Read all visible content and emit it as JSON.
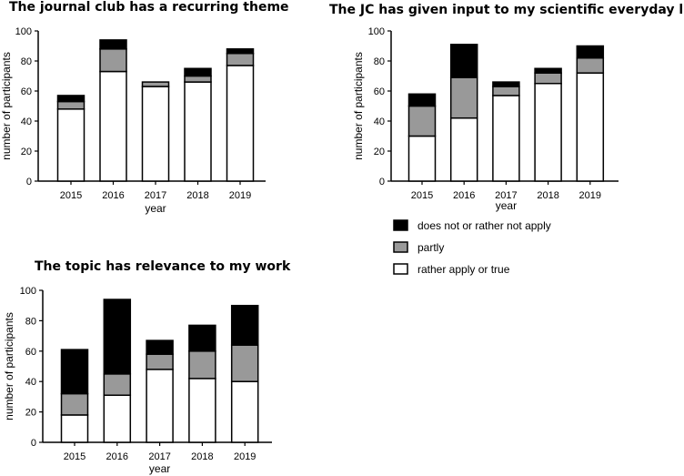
{
  "colors": {
    "does_not_apply": "#000000",
    "partly": "#999999",
    "rather_apply": "#ffffff",
    "outline": "#000000"
  },
  "legend": {
    "items": [
      {
        "key": "does_not_apply",
        "label": "does not or rather not apply"
      },
      {
        "key": "partly",
        "label": "partly"
      },
      {
        "key": "rather_apply",
        "label": "rather apply or true"
      }
    ]
  },
  "chart_data": [
    {
      "type": "bar",
      "stacked": true,
      "title": "The journal club has a recurring theme",
      "xlabel": "year",
      "ylabel": "number of participants",
      "ylim": [
        0,
        100
      ],
      "yticks": [
        0,
        20,
        40,
        60,
        80,
        100
      ],
      "categories": [
        "2015",
        "2016",
        "2017",
        "2018",
        "2019"
      ],
      "series": [
        {
          "name": "rather apply or true",
          "key": "rather_apply",
          "values": [
            48,
            73,
            63,
            66,
            77
          ]
        },
        {
          "name": "partly",
          "key": "partly",
          "values": [
            5,
            15,
            3,
            4,
            8
          ]
        },
        {
          "name": "does not or rather not apply",
          "key": "does_not_apply",
          "values": [
            4,
            6,
            0,
            5,
            3
          ]
        }
      ]
    },
    {
      "type": "bar",
      "stacked": true,
      "title": "The JC has given input to my scientific everyday life",
      "xlabel": "year",
      "ylabel": "number of participants",
      "ylim": [
        0,
        100
      ],
      "yticks": [
        0,
        20,
        40,
        60,
        80,
        100
      ],
      "categories": [
        "2015",
        "2016",
        "2017",
        "2018",
        "2019"
      ],
      "series": [
        {
          "name": "rather apply or true",
          "key": "rather_apply",
          "values": [
            30,
            42,
            57,
            65,
            72
          ]
        },
        {
          "name": "partly",
          "key": "partly",
          "values": [
            20,
            27,
            6,
            7,
            10
          ]
        },
        {
          "name": "does not or rather not apply",
          "key": "does_not_apply",
          "values": [
            8,
            22,
            3,
            3,
            8
          ]
        }
      ]
    },
    {
      "type": "bar",
      "stacked": true,
      "title": "The topic has relevance to my work",
      "xlabel": "year",
      "ylabel": "number of participants",
      "ylim": [
        0,
        100
      ],
      "yticks": [
        0,
        20,
        40,
        60,
        80,
        100
      ],
      "categories": [
        "2015",
        "2016",
        "2017",
        "2018",
        "2019"
      ],
      "series": [
        {
          "name": "rather apply or true",
          "key": "rather_apply",
          "values": [
            18,
            31,
            48,
            42,
            40
          ]
        },
        {
          "name": "partly",
          "key": "partly",
          "values": [
            14,
            14,
            10,
            18,
            24
          ]
        },
        {
          "name": "does not or rather not apply",
          "key": "does_not_apply",
          "values": [
            29,
            49,
            9,
            17,
            26
          ]
        }
      ]
    }
  ]
}
